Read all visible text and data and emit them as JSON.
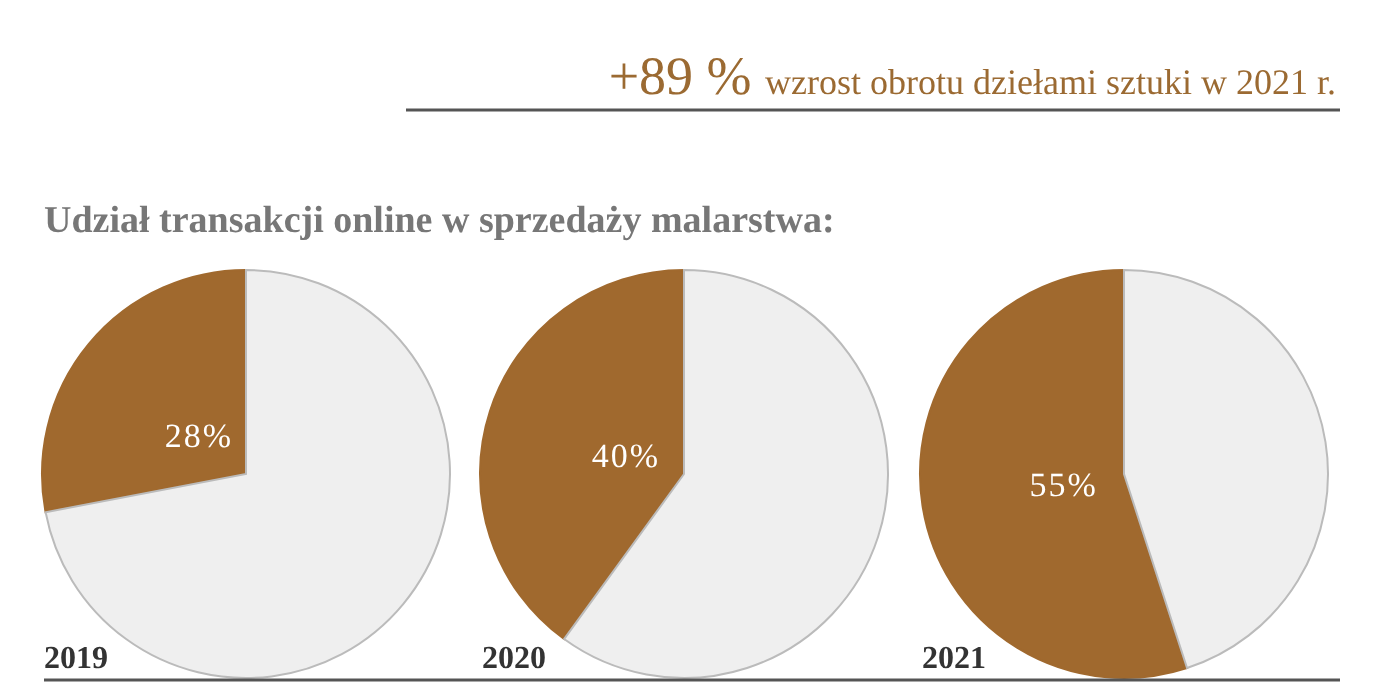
{
  "chart_data": [
    {
      "type": "pie",
      "title": "2019",
      "subtitle": "Udział transakcji online w sprzedaży malarstwa:",
      "annotations": [
        "+89 % wzrost obrotu dziełami sztuki w 2021 r."
      ],
      "categories": [
        null,
        null
      ],
      "values": [
        28,
        72
      ],
      "colors": [
        "#a0692e",
        "#efefef"
      ],
      "value_labels": [
        "28%",
        null
      ]
    },
    {
      "type": "pie",
      "title": "2020",
      "categories": [
        null,
        null
      ],
      "values": [
        40,
        60
      ],
      "colors": [
        "#a0692e",
        "#efefef"
      ],
      "value_labels": [
        "40%",
        null
      ]
    },
    {
      "type": "pie",
      "title": "2021",
      "categories": [
        null,
        null
      ],
      "values": [
        55,
        45
      ],
      "colors": [
        "#a0692e",
        "#efefef"
      ],
      "value_labels": [
        "55%",
        null
      ]
    }
  ]
}
